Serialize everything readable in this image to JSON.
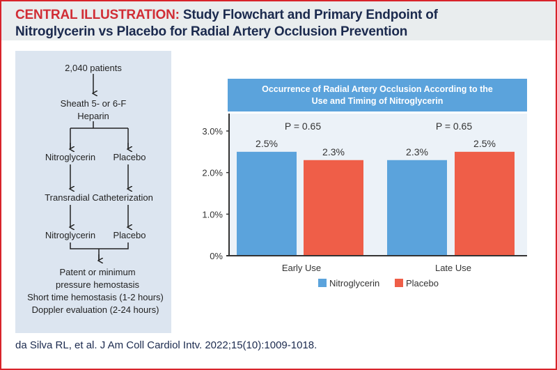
{
  "header": {
    "lead": "CENTRAL ILLUSTRATION:",
    "title_line1": "Study Flowchart and Primary Endpoint of",
    "title_line2": "Nitroglycerin vs Placebo for Radial Artery Occlusion Prevention"
  },
  "flowchart": {
    "step1": "2,040 patients",
    "step2a": "Sheath 5- or 6-F",
    "step2b": "Heparin",
    "arm_left_1": "Nitroglycerin",
    "arm_right_1": "Placebo",
    "step3": "Transradial Catheterization",
    "arm_left_2": "Nitroglycerin",
    "arm_right_2": "Placebo",
    "final": [
      "Patent or minimum",
      "pressure hemostasis",
      "Short time hemostasis (1-2 hours)",
      "Doppler evaluation (2-24 hours)"
    ]
  },
  "chart_data": {
    "type": "bar",
    "title": "Occurrence of Radial Artery Occlusion According to the Use and Timing of Nitroglycerin",
    "title_lines": [
      "Occurrence of Radial Artery Occlusion According to the",
      "Use and Timing of Nitroglycerin"
    ],
    "categories": [
      "Early Use",
      "Late Use"
    ],
    "series": [
      {
        "name": "Nitroglycerin",
        "values": [
          2.5,
          2.3
        ],
        "labels": [
          "2.5%",
          "2.3%"
        ],
        "color": "#5ba3dc"
      },
      {
        "name": "Placebo",
        "values": [
          2.3,
          2.5
        ],
        "labels": [
          "2.3%",
          "2.5%"
        ],
        "color": "#ef5e48"
      }
    ],
    "annotations": [
      "P = 0.65",
      "P = 0.65"
    ],
    "yticks": [
      "0%",
      "1.0%",
      "2.0%",
      "3.0%"
    ],
    "ylim": [
      0,
      3.0
    ],
    "legend": "bottom",
    "title_bg": "#5ba3dc",
    "plot_bg": "#ecf2f8"
  },
  "citation": "da Silva RL, et al. J Am Coll Cardiol Intv. 2022;15(10):1009-1018."
}
